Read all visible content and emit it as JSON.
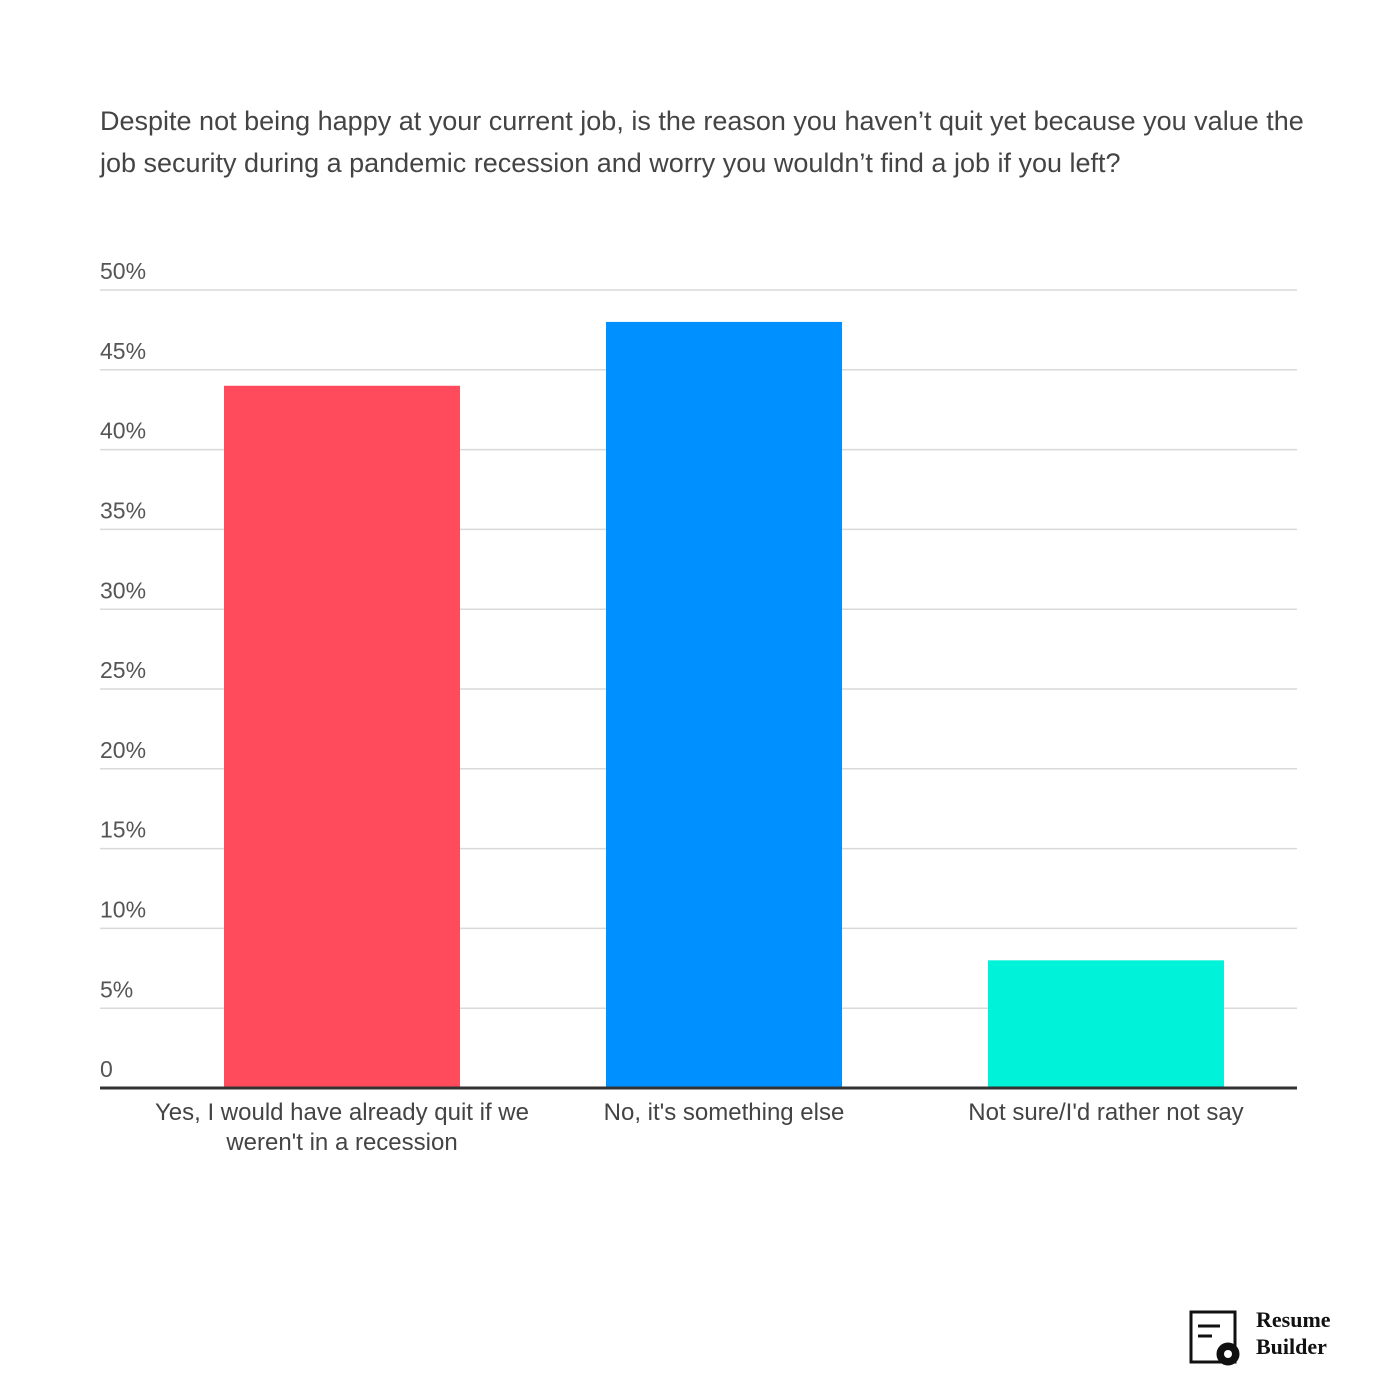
{
  "chart_data": {
    "type": "bar",
    "title": "Despite not being happy at your current job, is the reason you haven’t quit yet because you value the job security during a pandemic recession and worry you wouldn’t find a job if you left?",
    "categories": [
      "Yes, I would have already quit if we weren't in a recession",
      "No, it's something else",
      "Not sure/I'd rather not say"
    ],
    "values": [
      44,
      48,
      8
    ],
    "colors": [
      "#ff4b5c",
      "#0090ff",
      "#00f2d8"
    ],
    "ylim": [
      0,
      50
    ],
    "yticks": [
      0,
      {
        "value": 5,
        "label": "5%"
      },
      {
        "value": 10,
        "label": "10%"
      },
      {
        "value": 15,
        "label": "15%"
      },
      {
        "value": 20,
        "label": "20%"
      },
      {
        "value": 25,
        "label": "25%"
      },
      {
        "value": 30,
        "label": "30%"
      },
      {
        "value": 35,
        "label": "35%"
      },
      {
        "value": 40,
        "label": "40%"
      },
      {
        "value": 45,
        "label": "45%"
      },
      {
        "value": 50,
        "label": "50%"
      }
    ],
    "grid": true
  },
  "logo": "Resume Builder"
}
